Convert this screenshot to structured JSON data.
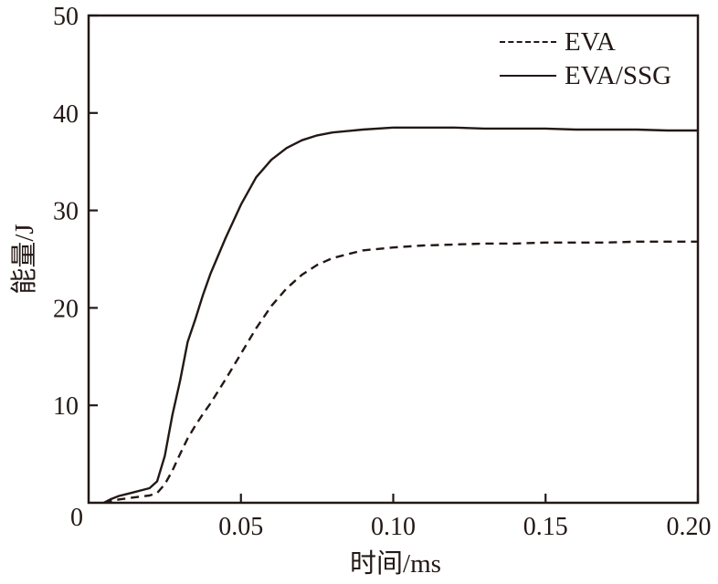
{
  "figure": {
    "background": "#ffffff",
    "ink_color": "#231815"
  },
  "chart_data": {
    "type": "line",
    "title": "",
    "xlabel": "时间/ms",
    "ylabel": "能量/J",
    "xlim": [
      0,
      0.2
    ],
    "ylim": [
      0,
      50
    ],
    "grid": false,
    "origin_label": "0",
    "x_ticks": [
      0.05,
      0.1,
      0.15,
      0.2
    ],
    "x_tick_labels": [
      "0.05",
      "0.10",
      "0.15",
      "0.20"
    ],
    "y_ticks": [
      10,
      20,
      30,
      40,
      50
    ],
    "y_tick_labels": [
      "10",
      "20",
      "30",
      "40",
      "50"
    ],
    "legend_position": "upper right",
    "series": [
      {
        "name": "EVA",
        "line_style": "dashed",
        "x": [
          0.005,
          0.0075,
          0.01,
          0.0125,
          0.015,
          0.0175,
          0.02,
          0.0225,
          0.025,
          0.0275,
          0.03,
          0.0325,
          0.035,
          0.0375,
          0.04,
          0.045,
          0.05,
          0.055,
          0.06,
          0.065,
          0.07,
          0.075,
          0.08,
          0.09,
          0.1,
          0.11,
          0.12,
          0.13,
          0.14,
          0.15,
          0.16,
          0.17,
          0.18,
          0.19,
          0.2
        ],
        "y": [
          0,
          0.2,
          0.35,
          0.45,
          0.55,
          0.65,
          0.75,
          1.0,
          1.9,
          3.3,
          5.0,
          6.6,
          7.9,
          9.1,
          10.2,
          12.7,
          15.3,
          17.9,
          20.2,
          22.0,
          23.4,
          24.4,
          25.1,
          25.9,
          26.2,
          26.4,
          26.5,
          26.6,
          26.6,
          26.7,
          26.7,
          26.7,
          26.8,
          26.8,
          26.8
        ]
      },
      {
        "name": "EVA/SSG",
        "line_style": "solid",
        "x": [
          0.005,
          0.0075,
          0.01,
          0.0125,
          0.015,
          0.0175,
          0.02,
          0.0225,
          0.025,
          0.0275,
          0.03,
          0.0325,
          0.035,
          0.0375,
          0.04,
          0.045,
          0.05,
          0.055,
          0.06,
          0.065,
          0.07,
          0.075,
          0.08,
          0.09,
          0.1,
          0.11,
          0.12,
          0.13,
          0.14,
          0.15,
          0.16,
          0.17,
          0.18,
          0.19,
          0.2
        ],
        "y": [
          0,
          0.4,
          0.7,
          0.9,
          1.1,
          1.3,
          1.5,
          2.2,
          4.8,
          9.0,
          12.5,
          16.5,
          18.8,
          21.3,
          23.5,
          27.2,
          30.6,
          33.4,
          35.2,
          36.4,
          37.2,
          37.7,
          38.0,
          38.3,
          38.5,
          38.5,
          38.5,
          38.4,
          38.4,
          38.4,
          38.3,
          38.3,
          38.3,
          38.2,
          38.2
        ]
      }
    ]
  }
}
